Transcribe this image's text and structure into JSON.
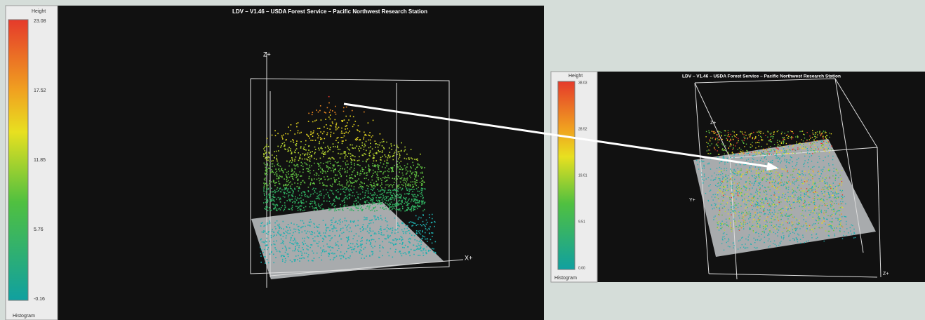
{
  "left_view": {
    "title": "LDV – V1.46 – USDA Forest Service – Pacific Northwest Research Station",
    "legend": {
      "title": "Height",
      "labels": [
        "23.08",
        "17.52",
        "11.85",
        "5.76",
        "-0.16"
      ]
    },
    "axes": [
      "Z+",
      "X+"
    ],
    "footer": "Histogram"
  },
  "right_view": {
    "title": "LDV – V1.46 – USDA Forest Service – Pacific Northwest Research Station",
    "legend": {
      "title": "Height",
      "labels": [
        "38.03",
        "28.52",
        "19.01",
        "9.51",
        "0.00"
      ]
    },
    "axes": [
      "Z+",
      "Y+",
      "Z+"
    ],
    "footer": "Histogram"
  }
}
